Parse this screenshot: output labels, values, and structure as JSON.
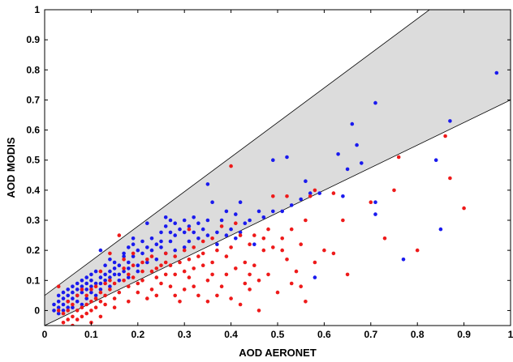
{
  "chart_data": {
    "type": "scatter",
    "title": "",
    "xlabel": "AOD AERONET",
    "ylabel": "AOD MODIS",
    "xlim": [
      0,
      1
    ],
    "ylim": [
      -0.05,
      1
    ],
    "x_ticks": [
      "0",
      "0.1",
      "0.2",
      "0.3",
      "0.4",
      "0.5",
      "0.6",
      "0.7",
      "0.8",
      "0.9",
      "1"
    ],
    "y_ticks": [
      "0",
      "0.1",
      "0.2",
      "0.3",
      "0.4",
      "0.5",
      "0.6",
      "0.7",
      "0.8",
      "0.9",
      "1"
    ],
    "grid": false,
    "legend": "none",
    "envelope": {
      "description_source": "shaded expected-error band",
      "upper": {
        "slope": 1.15,
        "intercept": 0.05
      },
      "lower": {
        "slope": 0.75,
        "intercept": -0.05
      },
      "fill_color": "#dcdcdc",
      "line_color": "#000000"
    },
    "series": [
      {
        "color": "#1a1aee",
        "points": [
          [
            0.97,
            0.79
          ],
          [
            0.87,
            0.63
          ],
          [
            0.71,
            0.69
          ],
          [
            0.66,
            0.62
          ],
          [
            0.84,
            0.5
          ],
          [
            0.67,
            0.55
          ],
          [
            0.63,
            0.52
          ],
          [
            0.65,
            0.47
          ],
          [
            0.68,
            0.49
          ],
          [
            0.71,
            0.36
          ],
          [
            0.71,
            0.32
          ],
          [
            0.77,
            0.17
          ],
          [
            0.85,
            0.27
          ],
          [
            0.64,
            0.38
          ],
          [
            0.52,
            0.51
          ],
          [
            0.49,
            0.5
          ],
          [
            0.56,
            0.43
          ],
          [
            0.51,
            0.33
          ],
          [
            0.53,
            0.35
          ],
          [
            0.55,
            0.37
          ],
          [
            0.57,
            0.39
          ],
          [
            0.59,
            0.39
          ],
          [
            0.46,
            0.33
          ],
          [
            0.44,
            0.3
          ],
          [
            0.42,
            0.36
          ],
          [
            0.41,
            0.32
          ],
          [
            0.39,
            0.33
          ],
          [
            0.38,
            0.3
          ],
          [
            0.36,
            0.36
          ],
          [
            0.35,
            0.42
          ],
          [
            0.37,
            0.26
          ],
          [
            0.4,
            0.27
          ],
          [
            0.43,
            0.29
          ],
          [
            0.47,
            0.31
          ],
          [
            0.49,
            0.33
          ],
          [
            0.42,
            0.26
          ],
          [
            0.45,
            0.22
          ],
          [
            0.32,
            0.31
          ],
          [
            0.3,
            0.3
          ],
          [
            0.31,
            0.28
          ],
          [
            0.28,
            0.29
          ],
          [
            0.29,
            0.27
          ],
          [
            0.27,
            0.3
          ],
          [
            0.26,
            0.28
          ],
          [
            0.25,
            0.26
          ],
          [
            0.28,
            0.25
          ],
          [
            0.3,
            0.26
          ],
          [
            0.32,
            0.26
          ],
          [
            0.34,
            0.27
          ],
          [
            0.33,
            0.24
          ],
          [
            0.27,
            0.23
          ],
          [
            0.26,
            0.31
          ],
          [
            0.22,
            0.29
          ],
          [
            0.23,
            0.24
          ],
          [
            0.24,
            0.22
          ],
          [
            0.22,
            0.21
          ],
          [
            0.21,
            0.23
          ],
          [
            0.2,
            0.2
          ],
          [
            0.19,
            0.22
          ],
          [
            0.18,
            0.21
          ],
          [
            0.17,
            0.18
          ],
          [
            0.19,
            0.18
          ],
          [
            0.21,
            0.19
          ],
          [
            0.23,
            0.2
          ],
          [
            0.25,
            0.21
          ],
          [
            0.26,
            0.19
          ],
          [
            0.28,
            0.2
          ],
          [
            0.3,
            0.21
          ],
          [
            0.24,
            0.17
          ],
          [
            0.22,
            0.16
          ],
          [
            0.2,
            0.15
          ],
          [
            0.18,
            0.16
          ],
          [
            0.16,
            0.15
          ],
          [
            0.15,
            0.16
          ],
          [
            0.14,
            0.17
          ],
          [
            0.13,
            0.15
          ],
          [
            0.12,
            0.2
          ],
          [
            0.14,
            0.13
          ],
          [
            0.16,
            0.12
          ],
          [
            0.12,
            0.11
          ],
          [
            0.11,
            0.13
          ],
          [
            0.1,
            0.12
          ],
          [
            0.1,
            0.1
          ],
          [
            0.09,
            0.11
          ],
          [
            0.09,
            0.09
          ],
          [
            0.08,
            0.1
          ],
          [
            0.08,
            0.08
          ],
          [
            0.07,
            0.09
          ],
          [
            0.07,
            0.07
          ],
          [
            0.06,
            0.08
          ],
          [
            0.06,
            0.06
          ],
          [
            0.05,
            0.07
          ],
          [
            0.05,
            0.05
          ],
          [
            0.04,
            0.06
          ],
          [
            0.04,
            0.04
          ],
          [
            0.03,
            0.05
          ],
          [
            0.03,
            0.03
          ],
          [
            0.03,
            0.01
          ],
          [
            0.02,
            0.02
          ],
          [
            0.02,
            0.0
          ],
          [
            0.04,
            0.02
          ],
          [
            0.05,
            0.03
          ],
          [
            0.06,
            0.04
          ],
          [
            0.07,
            0.05
          ],
          [
            0.08,
            0.06
          ],
          [
            0.09,
            0.07
          ],
          [
            0.1,
            0.08
          ],
          [
            0.11,
            0.09
          ],
          [
            0.12,
            0.09
          ],
          [
            0.13,
            0.1
          ],
          [
            0.14,
            0.11
          ],
          [
            0.15,
            0.12
          ],
          [
            0.17,
            0.13
          ],
          [
            0.18,
            0.14
          ],
          [
            0.2,
            0.13
          ],
          [
            0.11,
            0.05
          ],
          [
            0.09,
            0.04
          ],
          [
            0.04,
            0.0
          ],
          [
            0.03,
            -0.01
          ],
          [
            0.06,
            0.01
          ],
          [
            0.35,
            0.25
          ],
          [
            0.37,
            0.22
          ],
          [
            0.39,
            0.25
          ],
          [
            0.41,
            0.24
          ],
          [
            0.33,
            0.29
          ],
          [
            0.35,
            0.3
          ],
          [
            0.31,
            0.23
          ],
          [
            0.27,
            0.26
          ],
          [
            0.25,
            0.23
          ],
          [
            0.19,
            0.24
          ],
          [
            0.17,
            0.19
          ],
          [
            0.15,
            0.14
          ],
          [
            0.13,
            0.12
          ],
          [
            0.07,
            0.03
          ],
          [
            0.05,
            0.01
          ],
          [
            0.08,
            0.02
          ],
          [
            0.1,
            0.06
          ],
          [
            0.12,
            0.07
          ],
          [
            0.14,
            0.08
          ],
          [
            0.16,
            0.1
          ],
          [
            0.18,
            0.11
          ],
          [
            0.58,
            0.11
          ]
        ]
      },
      {
        "color": "#ee1a1a",
        "points": [
          [
            0.86,
            0.58
          ],
          [
            0.87,
            0.44
          ],
          [
            0.9,
            0.34
          ],
          [
            0.8,
            0.2
          ],
          [
            0.76,
            0.51
          ],
          [
            0.75,
            0.4
          ],
          [
            0.73,
            0.24
          ],
          [
            0.7,
            0.36
          ],
          [
            0.62,
            0.39
          ],
          [
            0.64,
            0.3
          ],
          [
            0.62,
            0.19
          ],
          [
            0.58,
            0.4
          ],
          [
            0.57,
            0.38
          ],
          [
            0.56,
            0.3
          ],
          [
            0.55,
            0.22
          ],
          [
            0.54,
            0.13
          ],
          [
            0.56,
            0.03
          ],
          [
            0.52,
            0.38
          ],
          [
            0.51,
            0.24
          ],
          [
            0.52,
            0.17
          ],
          [
            0.49,
            0.38
          ],
          [
            0.48,
            0.27
          ],
          [
            0.47,
            0.2
          ],
          [
            0.46,
            0.1
          ],
          [
            0.44,
            0.22
          ],
          [
            0.43,
            0.16
          ],
          [
            0.42,
            0.25
          ],
          [
            0.41,
            0.29
          ],
          [
            0.4,
            0.48
          ],
          [
            0.4,
            0.21
          ],
          [
            0.39,
            0.12
          ],
          [
            0.38,
            0.28
          ],
          [
            0.37,
            0.2
          ],
          [
            0.36,
            0.16
          ],
          [
            0.35,
            0.1
          ],
          [
            0.34,
            0.23
          ],
          [
            0.33,
            0.18
          ],
          [
            0.32,
            0.14
          ],
          [
            0.31,
            0.27
          ],
          [
            0.3,
            0.2
          ],
          [
            0.3,
            0.07
          ],
          [
            0.29,
            0.16
          ],
          [
            0.28,
            0.12
          ],
          [
            0.27,
            0.08
          ],
          [
            0.26,
            0.19
          ],
          [
            0.25,
            0.15
          ],
          [
            0.24,
            0.11
          ],
          [
            0.23,
            0.07
          ],
          [
            0.22,
            0.17
          ],
          [
            0.21,
            0.13
          ],
          [
            0.2,
            0.09
          ],
          [
            0.2,
            0.06
          ],
          [
            0.19,
            0.15
          ],
          [
            0.18,
            0.12
          ],
          [
            0.18,
            0.08
          ],
          [
            0.17,
            0.1
          ],
          [
            0.16,
            0.25
          ],
          [
            0.16,
            0.06
          ],
          [
            0.15,
            0.09
          ],
          [
            0.15,
            0.04
          ],
          [
            0.14,
            0.07
          ],
          [
            0.13,
            0.05
          ],
          [
            0.13,
            0.02
          ],
          [
            0.12,
            0.06
          ],
          [
            0.12,
            0.03
          ],
          [
            0.11,
            0.04
          ],
          [
            0.11,
            0.01
          ],
          [
            0.1,
            0.03
          ],
          [
            0.1,
            0.0
          ],
          [
            0.09,
            0.02
          ],
          [
            0.09,
            -0.01
          ],
          [
            0.08,
            0.01
          ],
          [
            0.08,
            -0.02
          ],
          [
            0.07,
            0.0
          ],
          [
            0.07,
            -0.03
          ],
          [
            0.06,
            0.02
          ],
          [
            0.06,
            -0.02
          ],
          [
            0.05,
            0.0
          ],
          [
            0.05,
            -0.03
          ],
          [
            0.04,
            -0.01
          ],
          [
            0.04,
            -0.04
          ],
          [
            0.03,
            0.0
          ],
          [
            0.03,
            0.08
          ],
          [
            0.08,
            0.07
          ],
          [
            0.09,
            0.05
          ],
          [
            0.1,
            0.07
          ],
          [
            0.11,
            0.08
          ],
          [
            0.13,
            0.09
          ],
          [
            0.14,
            0.1
          ],
          [
            0.17,
            0.14
          ],
          [
            0.19,
            0.11
          ],
          [
            0.21,
            0.1
          ],
          [
            0.23,
            0.13
          ],
          [
            0.24,
            0.05
          ],
          [
            0.26,
            0.12
          ],
          [
            0.28,
            0.05
          ],
          [
            0.29,
            0.03
          ],
          [
            0.31,
            0.11
          ],
          [
            0.33,
            0.05
          ],
          [
            0.35,
            0.03
          ],
          [
            0.37,
            0.05
          ],
          [
            0.38,
            0.08
          ],
          [
            0.4,
            0.04
          ],
          [
            0.42,
            0.02
          ],
          [
            0.44,
            0.07
          ],
          [
            0.46,
            0.0
          ],
          [
            0.5,
            0.06
          ],
          [
            0.53,
            0.09
          ],
          [
            0.48,
            0.12
          ],
          [
            0.45,
            0.15
          ],
          [
            0.43,
            0.09
          ],
          [
            0.36,
            0.24
          ],
          [
            0.34,
            0.15
          ],
          [
            0.32,
            0.08
          ],
          [
            0.3,
            0.13
          ],
          [
            0.27,
            0.15
          ],
          [
            0.25,
            0.09
          ],
          [
            0.22,
            0.04
          ],
          [
            0.18,
            0.03
          ],
          [
            0.15,
            0.01
          ],
          [
            0.12,
            -0.02
          ],
          [
            0.1,
            -0.04
          ],
          [
            0.06,
            -0.05
          ],
          [
            0.17,
            0.17
          ],
          [
            0.19,
            0.19
          ],
          [
            0.21,
            0.16
          ],
          [
            0.23,
            0.18
          ],
          [
            0.24,
            0.14
          ],
          [
            0.26,
            0.16
          ],
          [
            0.28,
            0.18
          ],
          [
            0.31,
            0.17
          ],
          [
            0.32,
            0.21
          ],
          [
            0.34,
            0.19
          ],
          [
            0.36,
            0.12
          ],
          [
            0.39,
            0.18
          ],
          [
            0.41,
            0.14
          ],
          [
            0.44,
            0.12
          ],
          [
            0.45,
            0.25
          ],
          [
            0.47,
            0.24
          ],
          [
            0.49,
            0.21
          ],
          [
            0.51,
            0.2
          ],
          [
            0.53,
            0.27
          ],
          [
            0.55,
            0.08
          ],
          [
            0.58,
            0.16
          ],
          [
            0.6,
            0.2
          ],
          [
            0.65,
            0.12
          ],
          [
            0.14,
            0.19
          ],
          [
            0.12,
            0.13
          ],
          [
            0.07,
            0.05
          ],
          [
            0.05,
            0.03
          ]
        ]
      }
    ]
  }
}
